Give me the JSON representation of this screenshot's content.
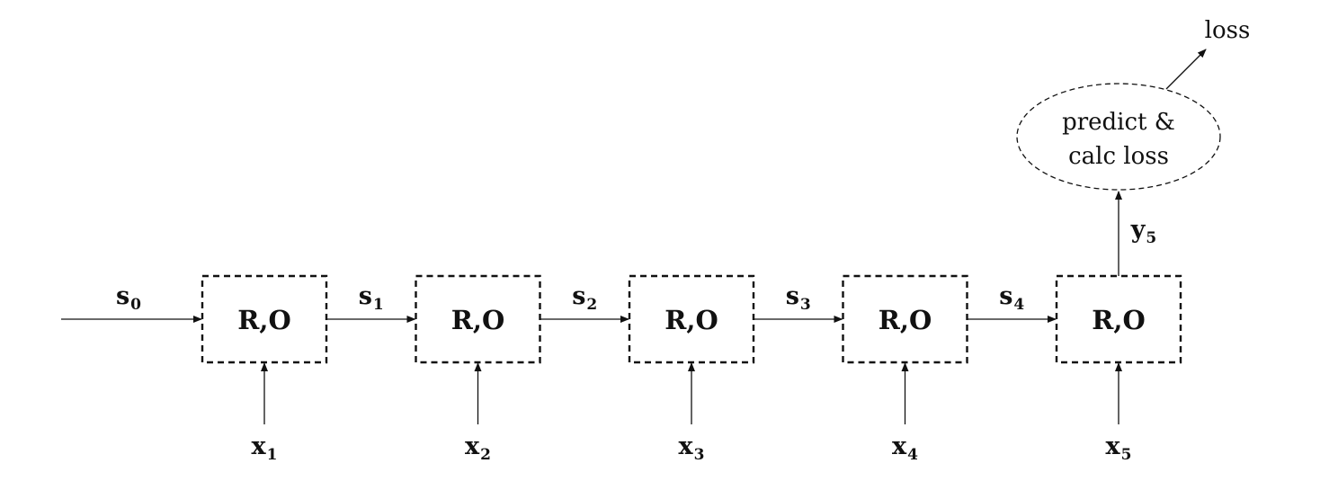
{
  "diagram": {
    "cells": [
      {
        "label": "R,O",
        "input": {
          "base": "x",
          "sub": "1"
        }
      },
      {
        "label": "R,O",
        "input": {
          "base": "x",
          "sub": "2"
        }
      },
      {
        "label": "R,O",
        "input": {
          "base": "x",
          "sub": "3"
        }
      },
      {
        "label": "R,O",
        "input": {
          "base": "x",
          "sub": "4"
        }
      },
      {
        "label": "R,O",
        "input": {
          "base": "x",
          "sub": "5"
        }
      }
    ],
    "states": [
      {
        "base": "s",
        "sub": "0"
      },
      {
        "base": "s",
        "sub": "1"
      },
      {
        "base": "s",
        "sub": "2"
      },
      {
        "base": "s",
        "sub": "3"
      },
      {
        "base": "s",
        "sub": "4"
      }
    ],
    "output": {
      "base": "y",
      "sub": "5"
    },
    "predict_node": {
      "line1": "predict &",
      "line2": "calc loss"
    },
    "loss_label": "loss"
  }
}
